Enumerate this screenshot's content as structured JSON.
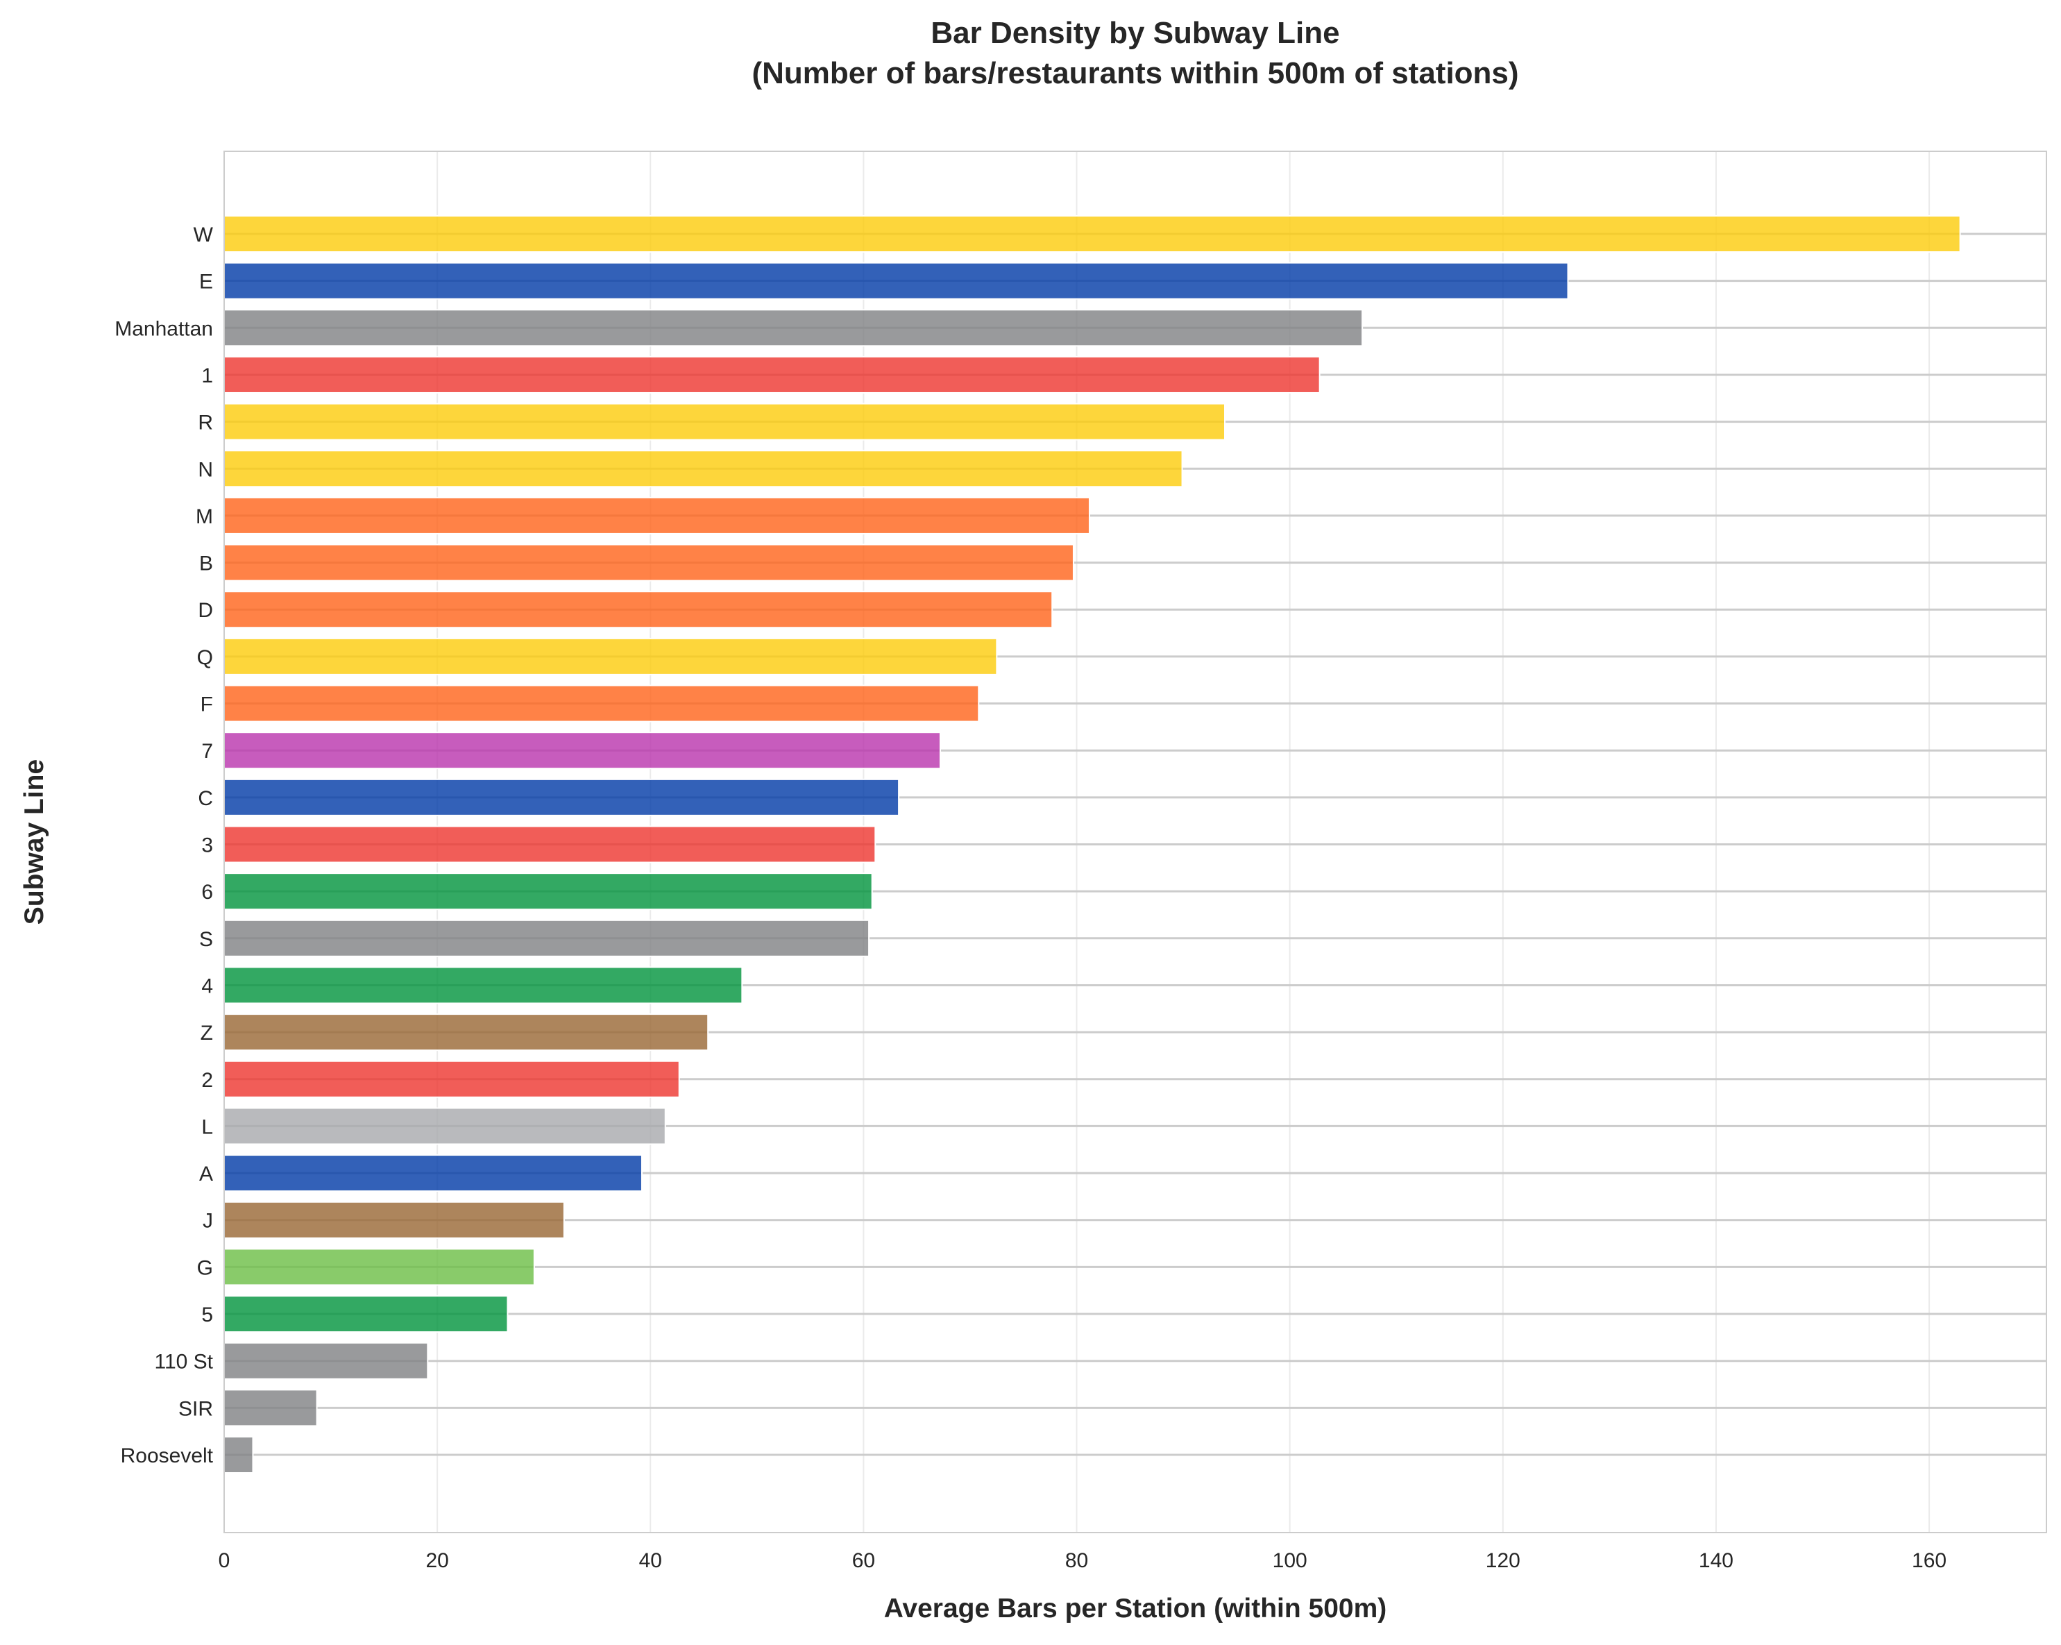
{
  "chart_data": {
    "type": "bar",
    "orientation": "horizontal",
    "title": "Bar Density by Subway Line",
    "subtitle": "(Number of bars/restaurants within 500m of stations)",
    "xlabel": "Average Bars per Station (within 500m)",
    "ylabel": "Subway Line",
    "xlim": [
      0,
      171
    ],
    "xticks": [
      0,
      20,
      40,
      60,
      80,
      100,
      120,
      140,
      160
    ],
    "grid": true,
    "legend": "none",
    "categories": [
      "W",
      "E",
      "Manhattan",
      "1",
      "R",
      "N",
      "M",
      "B",
      "D",
      "Q",
      "F",
      "7",
      "C",
      "3",
      "6",
      "S",
      "4",
      "Z",
      "2",
      "L",
      "A",
      "J",
      "G",
      "5",
      "110 St",
      "SIR",
      "Roosevelt"
    ],
    "values": [
      162.9,
      126.1,
      106.8,
      102.8,
      93.9,
      89.9,
      81.2,
      79.7,
      77.7,
      72.5,
      70.8,
      67.2,
      63.3,
      61.1,
      60.8,
      60.5,
      48.6,
      45.4,
      42.7,
      41.4,
      39.2,
      31.9,
      29.1,
      26.6,
      19.1,
      8.7,
      2.7
    ],
    "colors": [
      "#FCCC0A",
      "#0039A6",
      "#808183",
      "#EE352E",
      "#FCCC0A",
      "#FCCC0A",
      "#FF6319",
      "#FF6319",
      "#FF6319",
      "#FCCC0A",
      "#FF6319",
      "#B933AD",
      "#0039A6",
      "#EE352E",
      "#00933C",
      "#808183",
      "#00933C",
      "#996633",
      "#EE352E",
      "#A7A9AC",
      "#0039A6",
      "#996633",
      "#6CBE45",
      "#00933C",
      "#808183",
      "#808183",
      "#808183"
    ]
  }
}
